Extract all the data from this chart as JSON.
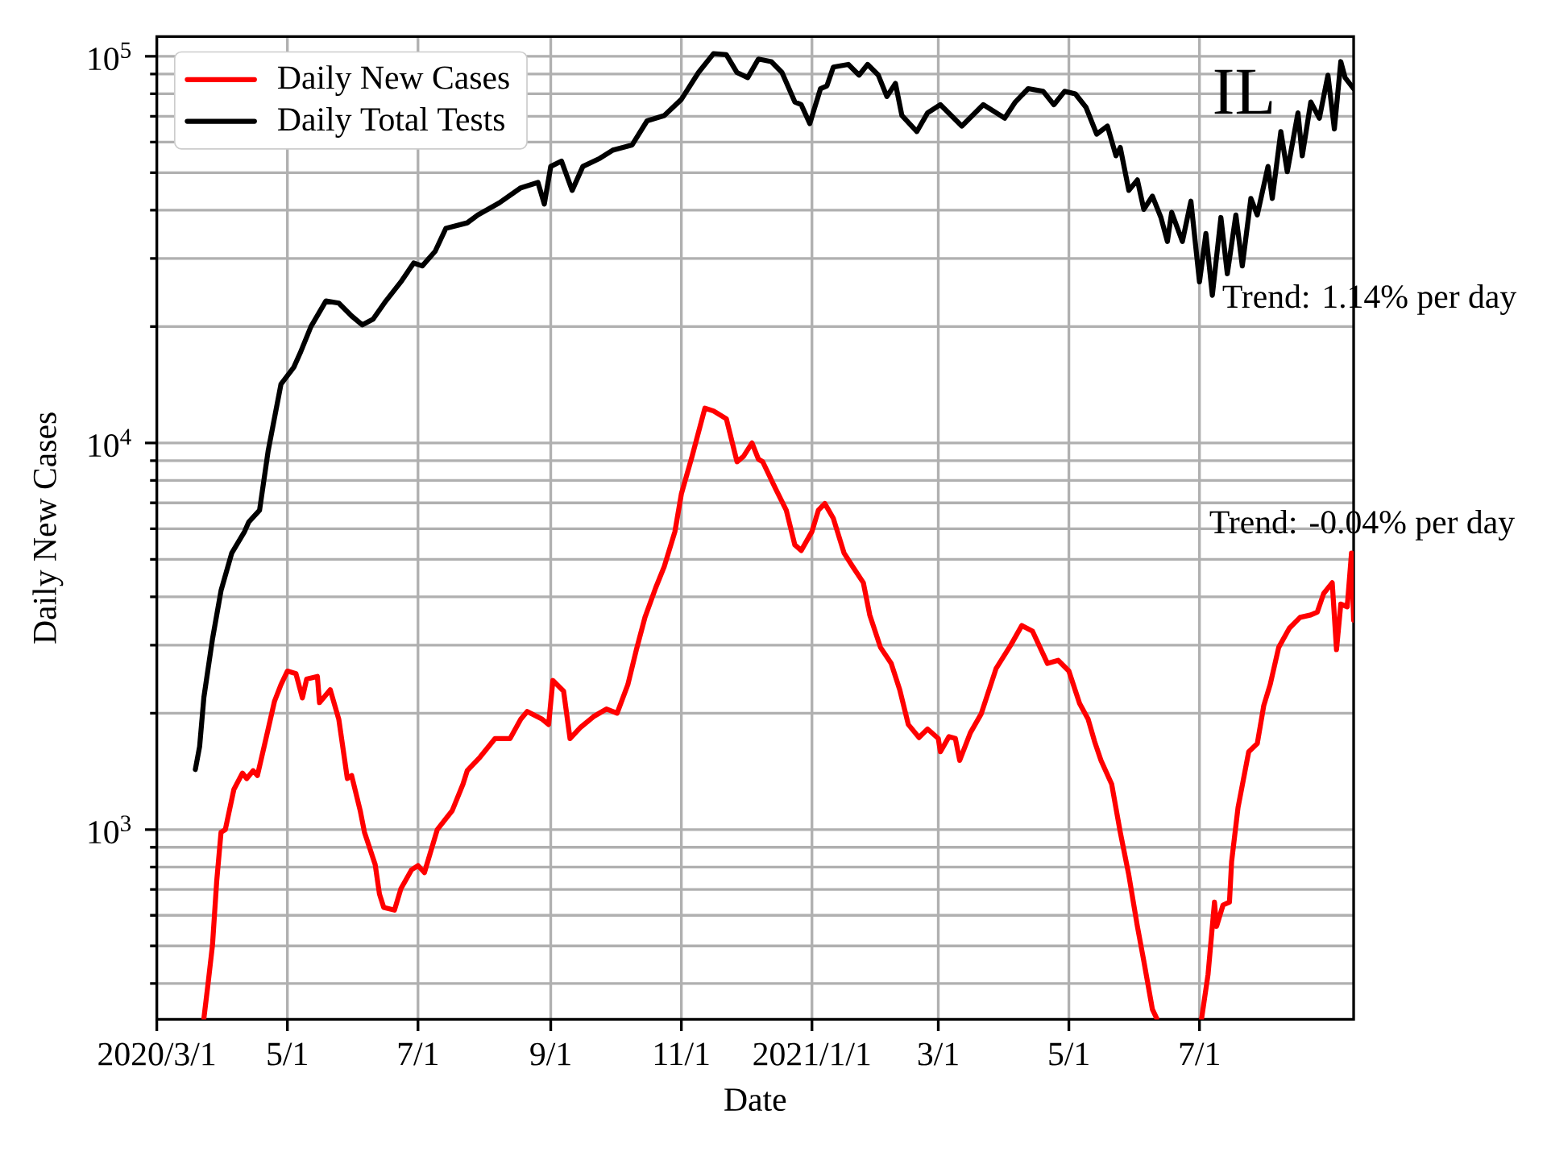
{
  "chart_data": {
    "type": "line",
    "xlabel": "Date",
    "ylabel": "Daily New Cases",
    "annotations": [
      "IL",
      "Trend: 1.14% per day",
      "Trend: -0.04% per day"
    ],
    "xlim": [
      "2020-03-01",
      "2021-09-11"
    ],
    "ylim": [
      323,
      112500
    ],
    "log": true,
    "grid": true,
    "legend": "top left",
    "xticks": [
      {
        "value": "2020-03-01",
        "label": "2020/3/1"
      },
      {
        "value": "2020-05-01",
        "label": "5/1"
      },
      {
        "value": "2020-07-01",
        "label": "7/1"
      },
      {
        "value": "2020-09-01",
        "label": "9/1"
      },
      {
        "value": "2020-11-01",
        "label": "11/1"
      },
      {
        "value": "2021-01-01",
        "label": "2021/1/1"
      },
      {
        "value": "2021-03-01",
        "label": "3/1"
      },
      {
        "value": "2021-05-01",
        "label": "5/1"
      },
      {
        "value": "2021-07-01",
        "label": "7/1"
      }
    ],
    "yticks": [
      {
        "value": 400,
        "label": null
      },
      {
        "value": 500,
        "label": null
      },
      {
        "value": 600,
        "label": null
      },
      {
        "value": 700,
        "label": null
      },
      {
        "value": 800,
        "label": null
      },
      {
        "value": 900,
        "label": null
      },
      {
        "value": 1000,
        "label": "10$^{3}$"
      },
      {
        "value": 2000,
        "label": null
      },
      {
        "value": 3000,
        "label": null
      },
      {
        "value": 4000,
        "label": null
      },
      {
        "value": 5000,
        "label": null
      },
      {
        "value": 6000,
        "label": null
      },
      {
        "value": 7000,
        "label": null
      },
      {
        "value": 8000,
        "label": null
      },
      {
        "value": 9000,
        "label": null
      },
      {
        "value": 10000,
        "label": "10$^{4}$"
      },
      {
        "value": 20000,
        "label": null
      },
      {
        "value": 30000,
        "label": null
      },
      {
        "value": 40000,
        "label": null
      },
      {
        "value": 50000,
        "label": null
      },
      {
        "value": 60000,
        "label": null
      },
      {
        "value": 70000,
        "label": null
      },
      {
        "value": 80000,
        "label": null
      },
      {
        "value": 90000,
        "label": null
      },
      {
        "value": 100000,
        "label": "10$^{5}$"
      }
    ],
    "series": [
      {
        "name": "Daily New Cases",
        "color": "#ff0000",
        "x": [
          "2020-03-23",
          "2020-03-25",
          "2020-03-27",
          "2020-03-29",
          "2020-03-31",
          "2020-04-02",
          "2020-04-06",
          "2020-04-10",
          "2020-04-12",
          "2020-04-15",
          "2020-04-17",
          "2020-04-21",
          "2020-04-25",
          "2020-04-28",
          "2020-05-01",
          "2020-05-05",
          "2020-05-08",
          "2020-05-10",
          "2020-05-15",
          "2020-05-16",
          "2020-05-21",
          "2020-05-25",
          "2020-05-29",
          "2020-05-31",
          "2020-06-04",
          "2020-06-06",
          "2020-06-11",
          "2020-06-13",
          "2020-06-15",
          "2020-06-20",
          "2020-06-23",
          "2020-06-28",
          "2020-07-01",
          "2020-07-04",
          "2020-07-10",
          "2020-07-17",
          "2020-07-22",
          "2020-07-24",
          "2020-07-30",
          "2020-08-06",
          "2020-08-13",
          "2020-08-18",
          "2020-08-21",
          "2020-08-28",
          "2020-08-31",
          "2020-09-02",
          "2020-09-07",
          "2020-09-10",
          "2020-09-15",
          "2020-09-21",
          "2020-09-27",
          "2020-10-02",
          "2020-10-07",
          "2020-10-11",
          "2020-10-15",
          "2020-10-20",
          "2020-10-24",
          "2020-10-29",
          "2020-11-01",
          "2020-11-06",
          "2020-11-12",
          "2020-11-16",
          "2020-11-22",
          "2020-11-27",
          "2020-11-30",
          "2020-12-04",
          "2020-12-07",
          "2020-12-09",
          "2020-12-15",
          "2020-12-20",
          "2020-12-24",
          "2020-12-27",
          "2021-01-01",
          "2021-01-04",
          "2021-01-07",
          "2021-01-11",
          "2021-01-16",
          "2021-01-20",
          "2021-01-25",
          "2021-01-28",
          "2021-02-02",
          "2021-02-07",
          "2021-02-11",
          "2021-02-15",
          "2021-02-20",
          "2021-02-24",
          "2021-03-01",
          "2021-03-02",
          "2021-03-06",
          "2021-03-09",
          "2021-03-11",
          "2021-03-16",
          "2021-03-21",
          "2021-03-28",
          "2021-04-04",
          "2021-04-09",
          "2021-04-14",
          "2021-04-21",
          "2021-04-26",
          "2021-05-01",
          "2021-05-06",
          "2021-05-10",
          "2021-05-13",
          "2021-05-16",
          "2021-05-21",
          "2021-05-25",
          "2021-05-29",
          "2021-06-02",
          "2021-06-05",
          "2021-06-09",
          "2021-06-11",
          "2021-06-20",
          "2021-07-02",
          "2021-07-05",
          "2021-07-08",
          "2021-07-09",
          "2021-07-12",
          "2021-07-15",
          "2021-07-16",
          "2021-07-19",
          "2021-07-24",
          "2021-07-28",
          "2021-07-31",
          "2021-08-03",
          "2021-08-07",
          "2021-08-12",
          "2021-08-17",
          "2021-08-22",
          "2021-08-25",
          "2021-08-28",
          "2021-09-01",
          "2021-09-03",
          "2021-09-05",
          "2021-09-08",
          "2021-09-10",
          "2021-09-11"
        ],
        "values": [
          325,
          402,
          502,
          738,
          984,
          1000,
          1270,
          1400,
          1355,
          1420,
          1380,
          1720,
          2150,
          2370,
          2570,
          2530,
          2190,
          2450,
          2490,
          2130,
          2300,
          1930,
          1355,
          1380,
          1120,
          984,
          812,
          681,
          629,
          619,
          703,
          787,
          807,
          774,
          1000,
          1120,
          1310,
          1420,
          1540,
          1720,
          1720,
          1930,
          2020,
          1930,
          1870,
          2430,
          2280,
          1720,
          1840,
          1960,
          2050,
          2000,
          2370,
          2920,
          3540,
          4220,
          4790,
          5900,
          7380,
          9230,
          12300,
          12100,
          11550,
          8940,
          9230,
          10000,
          9080,
          8940,
          7620,
          6700,
          5450,
          5270,
          5900,
          6700,
          6970,
          6380,
          5190,
          4790,
          4350,
          3590,
          2960,
          2690,
          2300,
          1870,
          1730,
          1820,
          1720,
          1590,
          1740,
          1720,
          1510,
          1780,
          1990,
          2610,
          3010,
          3370,
          3260,
          2690,
          2740,
          2570,
          2120,
          1930,
          1690,
          1510,
          1310,
          984,
          762,
          562,
          457,
          343,
          325,
          null,
          325,
          422,
          649,
          562,
          638,
          649,
          826,
          1140,
          1590,
          1670,
          2090,
          2370,
          2960,
          3320,
          3540,
          3590,
          3650,
          4080,
          4350,
          2920,
          3830,
          3770,
          5190,
          3480
        ]
      },
      {
        "name": "Daily Total Tests",
        "color": "#000000",
        "x": [
          "2020-03-19",
          "2020-03-21",
          "2020-03-23",
          "2020-03-27",
          "2020-03-31",
          "2020-04-05",
          "2020-04-11",
          "2020-04-13",
          "2020-04-18",
          "2020-04-22",
          "2020-04-28",
          "2020-05-04",
          "2020-05-07",
          "2020-05-12",
          "2020-05-19",
          "2020-05-25",
          "2020-05-31",
          "2020-06-05",
          "2020-06-10",
          "2020-06-16",
          "2020-06-23",
          "2020-06-29",
          "2020-07-03",
          "2020-07-09",
          "2020-07-14",
          "2020-07-24",
          "2020-07-29",
          "2020-08-08",
          "2020-08-18",
          "2020-08-26",
          "2020-08-29",
          "2020-09-01",
          "2020-09-06",
          "2020-09-11",
          "2020-09-16",
          "2020-09-24",
          "2020-09-30",
          "2020-10-09",
          "2020-10-16",
          "2020-10-24",
          "2020-11-01",
          "2020-11-09",
          "2020-11-16",
          "2020-11-22",
          "2020-11-27",
          "2020-12-02",
          "2020-12-07",
          "2020-12-13",
          "2020-12-18",
          "2020-12-24",
          "2020-12-27",
          "2020-12-31",
          "2021-01-05",
          "2021-01-08",
          "2021-01-11",
          "2021-01-18",
          "2021-01-23",
          "2021-01-27",
          "2021-02-01",
          "2021-02-05",
          "2021-02-09",
          "2021-02-12",
          "2021-02-19",
          "2021-02-24",
          "2021-03-02",
          "2021-03-12",
          "2021-03-22",
          "2021-04-01",
          "2021-04-06",
          "2021-04-12",
          "2021-04-19",
          "2021-04-24",
          "2021-04-29",
          "2021-05-04",
          "2021-05-09",
          "2021-05-14",
          "2021-05-19",
          "2021-05-23",
          "2021-05-25",
          "2021-05-29",
          "2021-06-02",
          "2021-06-05",
          "2021-06-09",
          "2021-06-13",
          "2021-06-16",
          "2021-06-18",
          "2021-06-23",
          "2021-06-27",
          "2021-07-01",
          "2021-07-04",
          "2021-07-07",
          "2021-07-11",
          "2021-07-14",
          "2021-07-18",
          "2021-07-21",
          "2021-07-25",
          "2021-07-28",
          "2021-08-02",
          "2021-08-04",
          "2021-08-08",
          "2021-08-11",
          "2021-08-16",
          "2021-08-18",
          "2021-08-22",
          "2021-08-26",
          "2021-08-30",
          "2021-09-02",
          "2021-09-05",
          "2021-09-07",
          "2021-09-11"
        ],
        "values": [
          1430,
          1640,
          2200,
          3110,
          4150,
          5190,
          5900,
          6250,
          6700,
          9530,
          14200,
          15700,
          17100,
          20000,
          23300,
          23000,
          21300,
          20200,
          20900,
          23300,
          26100,
          29200,
          28700,
          31300,
          35900,
          37100,
          38900,
          41800,
          45700,
          47200,
          41500,
          51900,
          53600,
          45000,
          51900,
          54500,
          57200,
          59000,
          68100,
          70300,
          77400,
          90800,
          101600,
          101000,
          90800,
          88100,
          98400,
          96900,
          90800,
          76200,
          75000,
          67000,
          82500,
          83900,
          93800,
          95300,
          89400,
          95300,
          89400,
          78700,
          85100,
          70300,
          63900,
          71400,
          75000,
          66000,
          75000,
          69200,
          76200,
          82500,
          81200,
          75000,
          81200,
          80000,
          73800,
          62900,
          66000,
          55300,
          58100,
          45000,
          47900,
          40200,
          43500,
          38300,
          33200,
          39500,
          33200,
          42200,
          26100,
          34800,
          24100,
          38300,
          27400,
          38900,
          28700,
          42900,
          38900,
          51900,
          42900,
          63900,
          50300,
          71400,
          55300,
          76200,
          69200,
          89400,
          64900,
          96900,
          88100,
          82500
        ]
      }
    ]
  }
}
